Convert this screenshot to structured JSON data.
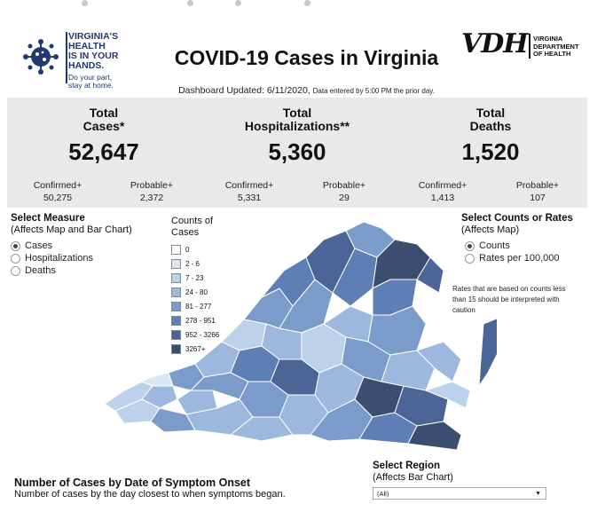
{
  "header": {
    "title": "COVID-19 Cases in Virginia",
    "updated": "Dashboard Updated: 6/11/2020,",
    "updated_note": "Data entered by 5:00 PM the prior day.",
    "logo_left_lines": [
      "VIRGINIA'S",
      "HEALTH",
      "IS IN YOUR",
      "HANDS."
    ],
    "logo_left_tagline": [
      "Do your part,",
      "stay at home."
    ],
    "logo_right_big": "VDH",
    "logo_right_lines": [
      "VIRGINIA",
      "DEPARTMENT",
      "OF HEALTH"
    ]
  },
  "stats": [
    {
      "label_lines": [
        "Total",
        "Cases*"
      ],
      "value": "52,647",
      "sub": [
        {
          "label": "Confirmed+",
          "value": "50,275"
        },
        {
          "label": "Probable+",
          "value": "2,372"
        }
      ]
    },
    {
      "label_lines": [
        "Total",
        "Hospitalizations**"
      ],
      "value": "5,360",
      "sub": [
        {
          "label": "Confirmed+",
          "value": "5,331"
        },
        {
          "label": "Probable+",
          "value": "29"
        }
      ]
    },
    {
      "label_lines": [
        "Total",
        "Deaths"
      ],
      "value": "1,520",
      "sub": [
        {
          "label": "Confirmed+",
          "value": "1,413"
        },
        {
          "label": "Probable+",
          "value": "107"
        }
      ]
    }
  ],
  "measure": {
    "title": "Select Measure",
    "subtitle": "(Affects Map and Bar Chart)",
    "options": [
      "Cases",
      "Hospitalizations",
      "Deaths"
    ],
    "selected": "Cases"
  },
  "legend": {
    "title_lines": [
      "Counts of",
      "Cases"
    ],
    "bins": [
      {
        "label": "0",
        "color": "#ffffff"
      },
      {
        "label": "2 - 6",
        "color": "#dbe6f3"
      },
      {
        "label": "7 - 23",
        "color": "#bcd1ea"
      },
      {
        "label": "24 - 80",
        "color": "#9db8dd"
      },
      {
        "label": "81 - 277",
        "color": "#7b9bcb"
      },
      {
        "label": "278 - 951",
        "color": "#5e7fb5"
      },
      {
        "label": "952 - 3266",
        "color": "#4a6596"
      },
      {
        "label": "3267+",
        "color": "#3b4e70"
      }
    ]
  },
  "rates": {
    "title": "Select Counts or Rates",
    "subtitle": "(Affects Map)",
    "options": [
      "Counts",
      "Rates per 100,000"
    ],
    "selected": "Counts",
    "note": "Rates that are based on counts less than 15 should be interpreted with caution"
  },
  "bottom": {
    "title": "Number of Cases by Date of Symptom Onset",
    "subtitle": "Number of cases by the day closest to when symptoms began."
  },
  "region": {
    "title": "Select Region",
    "subtitle": "(Affects Bar Chart)",
    "value": "(All)"
  }
}
